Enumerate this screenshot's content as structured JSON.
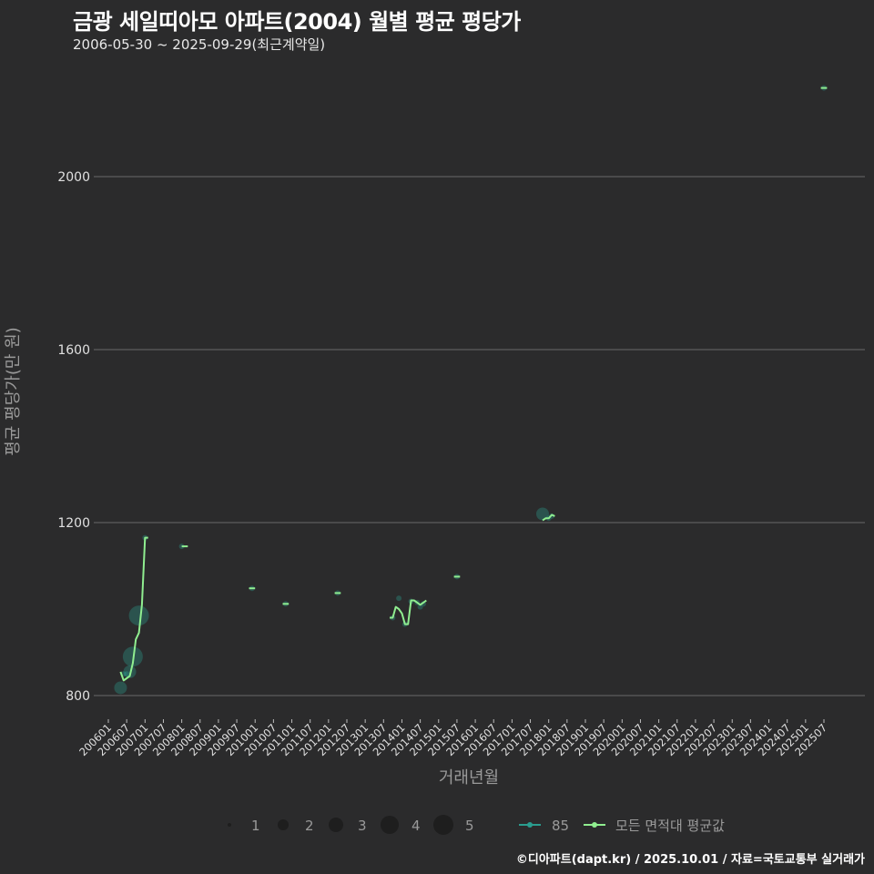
{
  "header": {
    "title": "금광 세일띠아모 아파트(2004) 월별 평균 평당가",
    "subtitle": "2006-05-30 ~ 2025-09-29(최근계약일)"
  },
  "caption": "©디아파트(dapt.kr) / 2025.10.01 / 자료=국토교통부 실거래가",
  "colors": {
    "background": "#2b2b2c",
    "grid": "#6a6a6a",
    "series_85": "#2a9d8f",
    "series_avg": "#90ee90"
  },
  "chart_data": {
    "type": "line",
    "title": "금광 세일띠아모 아파트(2004) 월별 평균 평당가",
    "subtitle": "2006-05-30 ~ 2025-09-29(최근계약일)",
    "xlabel": "거래년월",
    "ylabel": "평균 평당가(만 원)",
    "ylim": [
      760,
      2230
    ],
    "yticks": [
      800,
      1200,
      1600,
      2000
    ],
    "grid": "horizontal",
    "x_tick_labels": [
      "200601",
      "200607",
      "200701",
      "200707",
      "200801",
      "200807",
      "200901",
      "200907",
      "201001",
      "201007",
      "201101",
      "201107",
      "201201",
      "201207",
      "201301",
      "201307",
      "201401",
      "201407",
      "201501",
      "201507",
      "201601",
      "201607",
      "201701",
      "201707",
      "201801",
      "201807",
      "201901",
      "201907",
      "202001",
      "202007",
      "202101",
      "202107",
      "202201",
      "202207",
      "202301",
      "202307",
      "202401",
      "202407",
      "202501",
      "202507"
    ],
    "legend": {
      "position": "bottom",
      "size_title": "",
      "size_entries": [
        "1",
        "2",
        "3",
        "4",
        "5"
      ],
      "color_entries": [
        "85",
        "모든 면적대 평균값"
      ]
    },
    "series": [
      {
        "name": "85",
        "type": "scatter",
        "points": [
          {
            "x": "200605",
            "y": 818,
            "n": 2
          },
          {
            "x": "200606",
            "y": 850,
            "n": 1
          },
          {
            "x": "200607",
            "y": 850,
            "n": 1
          },
          {
            "x": "200608",
            "y": 855,
            "n": 2
          },
          {
            "x": "200609",
            "y": 890,
            "n": 4
          },
          {
            "x": "200611",
            "y": 985,
            "n": 4
          },
          {
            "x": "200701",
            "y": 1165,
            "n": 1
          },
          {
            "x": "200801",
            "y": 1145,
            "n": 1
          },
          {
            "x": "200912",
            "y": 1048,
            "n": 1
          },
          {
            "x": "201011",
            "y": 1012,
            "n": 1
          },
          {
            "x": "201204",
            "y": 1037,
            "n": 1
          },
          {
            "x": "201310",
            "y": 980,
            "n": 1
          },
          {
            "x": "201312",
            "y": 1025,
            "n": 1
          },
          {
            "x": "201402",
            "y": 965,
            "n": 1
          },
          {
            "x": "201404",
            "y": 1018,
            "n": 1
          },
          {
            "x": "201406",
            "y": 1015,
            "n": 1
          },
          {
            "x": "201407",
            "y": 1005,
            "n": 1
          },
          {
            "x": "201408",
            "y": 1012,
            "n": 1
          },
          {
            "x": "201507",
            "y": 1075,
            "n": 1
          },
          {
            "x": "201711",
            "y": 1220,
            "n": 2
          },
          {
            "x": "201801",
            "y": 1210,
            "n": 1
          },
          {
            "x": "201802",
            "y": 1215,
            "n": 1
          },
          {
            "x": "202507",
            "y": 2205,
            "n": 1
          }
        ]
      },
      {
        "name": "모든 면적대 평균값",
        "type": "line",
        "segments": [
          [
            [
              "200605",
              855
            ],
            [
              "200606",
              835
            ],
            [
              "200607",
              840
            ],
            [
              "200608",
              845
            ],
            [
              "200609",
              875
            ],
            [
              "200610",
              930
            ],
            [
              "200611",
              945
            ],
            [
              "200612",
              1010
            ],
            [
              "200701",
              1165
            ],
            [
              "200702",
              1165
            ]
          ],
          [
            [
              "200801",
              1145
            ],
            [
              "200803",
              1145
            ]
          ],
          [
            [
              "200911",
              1048
            ],
            [
              "201001",
              1048
            ]
          ],
          [
            [
              "201010",
              1012
            ],
            [
              "201012",
              1012
            ]
          ],
          [
            [
              "201203",
              1037
            ],
            [
              "201205",
              1037
            ]
          ],
          [
            [
              "201309",
              980
            ],
            [
              "201310",
              980
            ],
            [
              "201311",
              1005
            ],
            [
              "201312",
              1000
            ],
            [
              "201401",
              990
            ],
            [
              "201402",
              965
            ],
            [
              "201403",
              965
            ],
            [
              "201404",
              1020
            ],
            [
              "201405",
              1020
            ],
            [
              "201406",
              1015
            ],
            [
              "201407",
              1010
            ],
            [
              "201408",
              1015
            ],
            [
              "201409",
              1020
            ]
          ],
          [
            [
              "201506",
              1075
            ],
            [
              "201508",
              1075
            ]
          ],
          [
            [
              "201711",
              1205
            ],
            [
              "201712",
              1210
            ],
            [
              "201801",
              1210
            ],
            [
              "201802",
              1218
            ],
            [
              "201803",
              1215
            ]
          ],
          [
            [
              "202506",
              2205
            ],
            [
              "202508",
              2205
            ]
          ]
        ]
      }
    ]
  }
}
